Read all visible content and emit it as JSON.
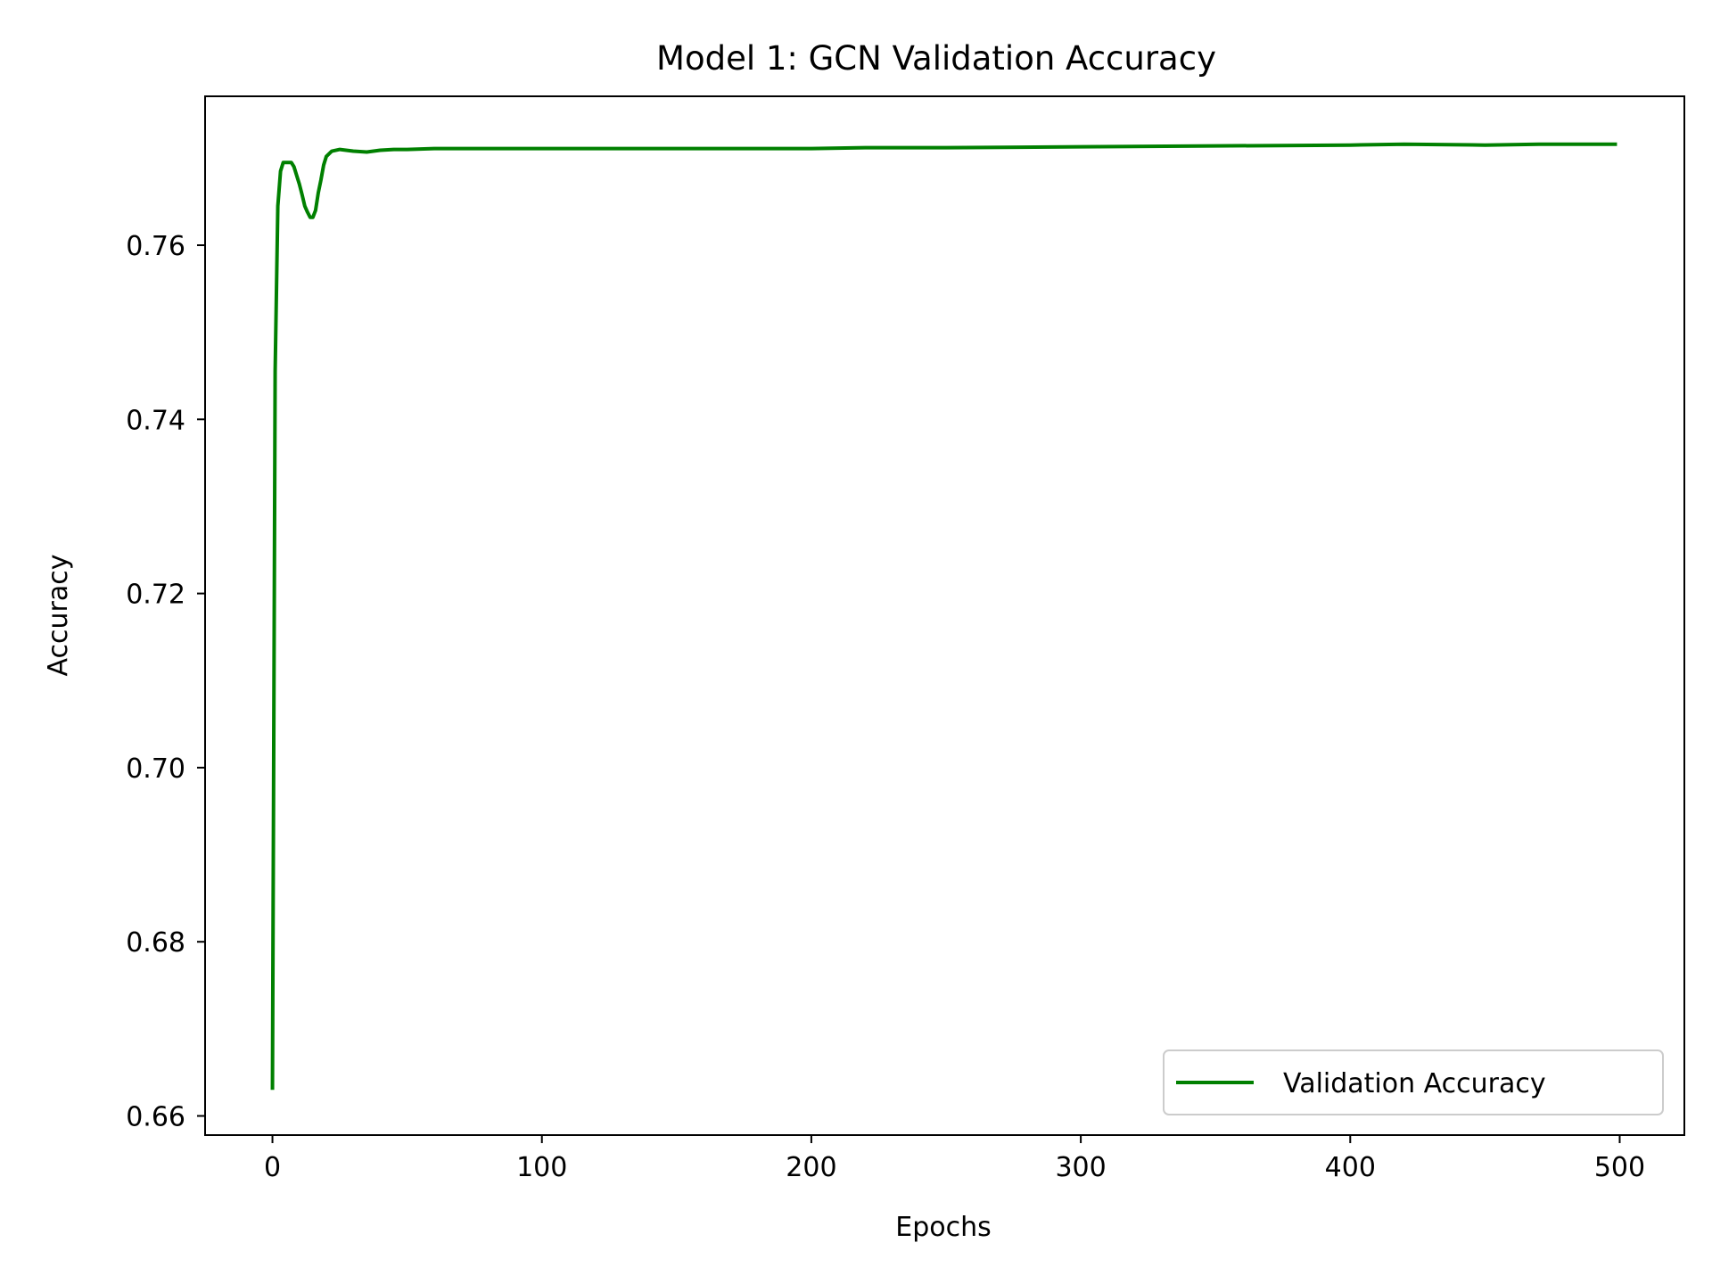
{
  "chart_data": {
    "type": "line",
    "title": "Model 1: GCN Validation Accuracy",
    "xlabel": "Epochs",
    "ylabel": "Accuracy",
    "xlim": [
      -25,
      524
    ],
    "ylim": [
      0.6578,
      0.7771
    ],
    "xticks": [
      0,
      100,
      200,
      300,
      400,
      500
    ],
    "xtick_labels": [
      "0",
      "100",
      "200",
      "300",
      "400",
      "500"
    ],
    "yticks": [
      0.66,
      0.68,
      0.7,
      0.72,
      0.74,
      0.76
    ],
    "ytick_labels": [
      "0.66",
      "0.68",
      "0.70",
      "0.72",
      "0.74",
      "0.76"
    ],
    "grid": false,
    "legend": {
      "position": "lower-right"
    },
    "series": [
      {
        "name": "Validation Accuracy",
        "color": "#008000",
        "x": [
          0,
          1,
          2,
          3,
          4,
          5,
          6,
          7,
          8,
          9,
          10,
          11,
          12,
          13,
          14,
          15,
          16,
          17,
          18,
          19,
          20,
          22,
          25,
          30,
          35,
          40,
          45,
          50,
          60,
          80,
          100,
          150,
          200,
          220,
          250,
          300,
          350,
          400,
          420,
          450,
          470,
          499
        ],
        "y": [
          0.663,
          0.7455,
          0.7645,
          0.7685,
          0.7695,
          0.7695,
          0.7695,
          0.7695,
          0.769,
          0.768,
          0.767,
          0.7658,
          0.7645,
          0.7638,
          0.7632,
          0.7632,
          0.764,
          0.766,
          0.7675,
          0.7692,
          0.7702,
          0.7708,
          0.771,
          0.7708,
          0.7707,
          0.7709,
          0.771,
          0.771,
          0.7711,
          0.7711,
          0.7711,
          0.7711,
          0.7711,
          0.7712,
          0.7712,
          0.7713,
          0.7714,
          0.7715,
          0.7716,
          0.7715,
          0.7716,
          0.7716
        ]
      }
    ]
  }
}
